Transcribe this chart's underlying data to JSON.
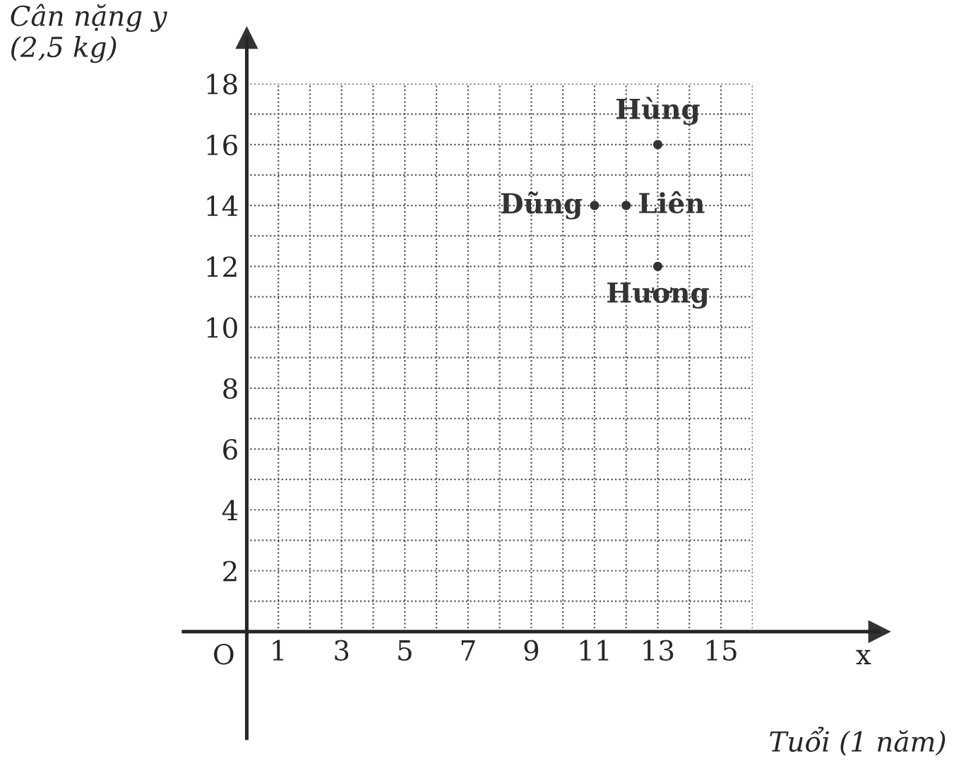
{
  "chart_data": {
    "type": "scatter",
    "ylabel": "Cân nặng y\n(2,5 kg)",
    "xlabel": "Tuổi (1 năm)",
    "x": [
      13,
      11,
      12,
      13
    ],
    "values": [
      16,
      14,
      14,
      12
    ],
    "color": "#333333",
    "marker": "circle",
    "xlim": [
      -2,
      20
    ],
    "ylim": [
      -3.5,
      19.5
    ],
    "xticks": [
      1,
      3,
      5,
      7,
      9,
      11,
      13,
      15
    ],
    "yticks": [
      2,
      4,
      6,
      8,
      10,
      12,
      14,
      16,
      18
    ],
    "grid": true,
    "annotations": [
      {
        "text": "Hùng",
        "x": 13,
        "y": 16
      },
      {
        "text": "Dũng",
        "x": 11,
        "y": 14
      },
      {
        "text": "Liên",
        "x": 12,
        "y": 14
      },
      {
        "text": "Hương",
        "x": 13,
        "y": 12
      },
      "O",
      "x"
    ]
  }
}
